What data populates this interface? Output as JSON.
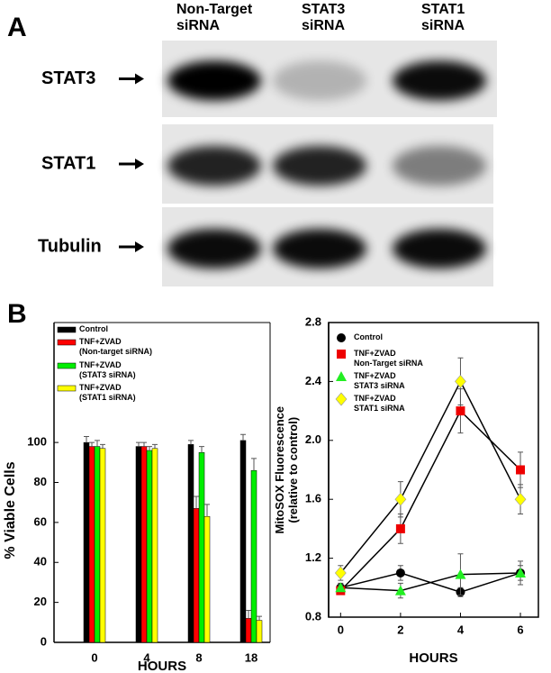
{
  "panel_a": {
    "label": "A",
    "lanes": [
      "Non-Target\nsiRNA",
      "STAT3\nsiRNA",
      "STAT1\nsiRNA"
    ],
    "rows": [
      "STAT3",
      "STAT1",
      "Tubulin"
    ]
  },
  "panel_b": {
    "label": "B"
  },
  "chart_data": [
    {
      "type": "bar",
      "xlabel": "HOURS",
      "ylabel": "% Viable Cells",
      "categories": [
        "0",
        "4",
        "8",
        "18"
      ],
      "ylim": [
        0,
        160
      ],
      "yticks": [
        0,
        20,
        40,
        60,
        80,
        100
      ],
      "legend": "upper left",
      "series": [
        {
          "name": "Control",
          "color": "#000000",
          "values": [
            100,
            98,
            99,
            101
          ],
          "errors": [
            3,
            2,
            2,
            3
          ]
        },
        {
          "name": "TNF+ZVAD\n(Non-target siRNA)",
          "color": "#ff0000",
          "values": [
            98,
            98,
            67,
            12
          ],
          "errors": [
            2,
            2,
            6,
            4
          ]
        },
        {
          "name": "TNF+ZVAD\n(STAT3 siRNA)",
          "color": "#00ee00",
          "values": [
            98,
            96,
            95,
            86
          ],
          "errors": [
            3,
            2,
            3,
            6
          ]
        },
        {
          "name": "TNF+ZVAD\n(STAT1 siRNA)",
          "color": "#ffff00",
          "values": [
            97,
            97,
            63,
            11
          ],
          "errors": [
            2,
            2,
            6,
            2
          ]
        }
      ]
    },
    {
      "type": "line",
      "xlabel": "HOURS",
      "ylabel": "MitoSOX Fluorescence\n(relative to control)",
      "x": [
        0,
        2,
        4,
        6
      ],
      "xlim": [
        -0.4,
        6.6
      ],
      "xticks": [
        0,
        2,
        4,
        6
      ],
      "ylim": [
        0.8,
        2.8
      ],
      "yticks": [
        0.8,
        1.2,
        1.6,
        {
          "value": 2,
          "label": "2.0"
        },
        2.4,
        2.8
      ],
      "legend": "upper left",
      "series": [
        {
          "name": "Control",
          "color": "#000000",
          "marker": "circle",
          "values": [
            1.0,
            1.1,
            0.97,
            1.1
          ],
          "errors": [
            0.03,
            0.05,
            0.03,
            0.05
          ]
        },
        {
          "name": "TNF+ZVAD\nNon-Target siRNA",
          "color": "#ee0000",
          "marker": "square",
          "values": [
            0.98,
            1.4,
            2.2,
            1.8
          ],
          "errors": [
            0.02,
            0.1,
            0.15,
            0.12
          ]
        },
        {
          "name": "TNF+ZVAD\nSTAT3 siRNA",
          "color": "#22ee22",
          "marker": "triangle",
          "values": [
            1.0,
            0.98,
            1.09,
            1.1
          ],
          "errors": [
            0.02,
            0.05,
            0.14,
            0.08
          ]
        },
        {
          "name": "TNF+ZVAD\nSTAT1 siRNA",
          "color": "#ffff00",
          "marker": "diamond",
          "values": [
            1.1,
            1.6,
            2.4,
            1.6
          ],
          "errors": [
            0.05,
            0.12,
            0.16,
            0.1
          ]
        }
      ]
    }
  ]
}
